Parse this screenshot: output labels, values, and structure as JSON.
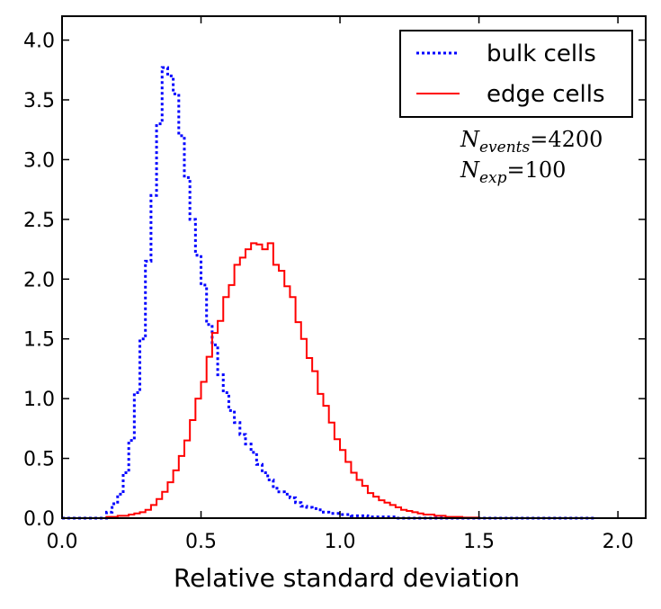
{
  "chart_data": {
    "type": "line",
    "drawstyle": "steps",
    "xlabel": "Relative standard deviation",
    "ylabel": "",
    "xlim": [
      0.0,
      2.1
    ],
    "ylim": [
      0.0,
      4.2
    ],
    "xticks": [
      "0.0",
      "0.5",
      "1.0",
      "1.5",
      "2.0"
    ],
    "yticks": [
      "0.0",
      "0.5",
      "1.0",
      "1.5",
      "2.0",
      "2.5",
      "3.0",
      "3.5",
      "4.0"
    ],
    "grid": false,
    "legend_position": "top-right",
    "annotations": [
      {
        "symbol": "N",
        "subscript": "events",
        "value": "=4200"
      },
      {
        "symbol": "N",
        "subscript": "exp",
        "value": "=100"
      }
    ],
    "series": [
      {
        "name": "bulk cells",
        "color": "#0000ff",
        "linestyle": "dotted",
        "bins": [
          [
            0.0,
            0.02,
            0.0
          ],
          [
            0.02,
            0.04,
            0.0
          ],
          [
            0.04,
            0.06,
            0.0
          ],
          [
            0.06,
            0.08,
            0.0
          ],
          [
            0.08,
            0.1,
            0.0
          ],
          [
            0.1,
            0.12,
            0.0
          ],
          [
            0.12,
            0.14,
            0.0
          ],
          [
            0.14,
            0.16,
            0.0
          ],
          [
            0.16,
            0.18,
            0.05
          ],
          [
            0.18,
            0.2,
            0.12
          ],
          [
            0.2,
            0.22,
            0.2
          ],
          [
            0.22,
            0.24,
            0.38
          ],
          [
            0.24,
            0.26,
            0.65
          ],
          [
            0.26,
            0.28,
            1.05
          ],
          [
            0.28,
            0.3,
            1.5
          ],
          [
            0.3,
            0.32,
            2.15
          ],
          [
            0.32,
            0.34,
            2.7
          ],
          [
            0.34,
            0.36,
            3.3
          ],
          [
            0.36,
            0.38,
            3.77
          ],
          [
            0.38,
            0.4,
            3.7
          ],
          [
            0.4,
            0.42,
            3.55
          ],
          [
            0.42,
            0.44,
            3.2
          ],
          [
            0.44,
            0.46,
            2.85
          ],
          [
            0.46,
            0.48,
            2.5
          ],
          [
            0.48,
            0.5,
            2.2
          ],
          [
            0.5,
            0.52,
            1.95
          ],
          [
            0.52,
            0.54,
            1.62
          ],
          [
            0.54,
            0.56,
            1.45
          ],
          [
            0.56,
            0.58,
            1.2
          ],
          [
            0.58,
            0.6,
            1.05
          ],
          [
            0.6,
            0.62,
            0.9
          ],
          [
            0.62,
            0.64,
            0.8
          ],
          [
            0.64,
            0.66,
            0.7
          ],
          [
            0.66,
            0.68,
            0.62
          ],
          [
            0.68,
            0.7,
            0.55
          ],
          [
            0.7,
            0.72,
            0.45
          ],
          [
            0.72,
            0.74,
            0.38
          ],
          [
            0.74,
            0.76,
            0.32
          ],
          [
            0.76,
            0.78,
            0.25
          ],
          [
            0.78,
            0.8,
            0.22
          ],
          [
            0.8,
            0.82,
            0.2
          ],
          [
            0.82,
            0.84,
            0.17
          ],
          [
            0.84,
            0.86,
            0.13
          ],
          [
            0.86,
            0.88,
            0.1
          ],
          [
            0.88,
            0.9,
            0.09
          ],
          [
            0.9,
            0.92,
            0.08
          ],
          [
            0.92,
            0.94,
            0.07
          ],
          [
            0.94,
            0.96,
            0.05
          ],
          [
            0.96,
            0.98,
            0.04
          ],
          [
            0.98,
            1.0,
            0.04
          ],
          [
            1.0,
            1.02,
            0.03
          ],
          [
            1.02,
            1.04,
            0.03
          ],
          [
            1.04,
            1.06,
            0.02
          ],
          [
            1.06,
            1.08,
            0.02
          ],
          [
            1.08,
            1.1,
            0.02
          ],
          [
            1.1,
            1.12,
            0.01
          ],
          [
            1.12,
            1.14,
            0.01
          ],
          [
            1.14,
            1.16,
            0.01
          ],
          [
            1.16,
            1.18,
            0.01
          ],
          [
            1.18,
            1.2,
            0.01
          ],
          [
            1.2,
            1.3,
            0.0
          ],
          [
            1.3,
            1.4,
            0.0
          ],
          [
            1.4,
            1.5,
            0.0
          ],
          [
            1.5,
            1.6,
            0.0
          ],
          [
            1.6,
            1.7,
            0.0
          ],
          [
            1.7,
            1.8,
            0.0
          ],
          [
            1.8,
            1.92,
            0.0
          ]
        ]
      },
      {
        "name": "edge cells",
        "color": "#ff0000",
        "linestyle": "solid",
        "bins": [
          [
            0.0,
            0.16,
            0.0
          ],
          [
            0.16,
            0.2,
            0.01
          ],
          [
            0.2,
            0.24,
            0.02
          ],
          [
            0.24,
            0.26,
            0.03
          ],
          [
            0.26,
            0.28,
            0.04
          ],
          [
            0.28,
            0.3,
            0.05
          ],
          [
            0.3,
            0.32,
            0.07
          ],
          [
            0.32,
            0.34,
            0.11
          ],
          [
            0.34,
            0.36,
            0.16
          ],
          [
            0.36,
            0.38,
            0.22
          ],
          [
            0.38,
            0.4,
            0.3
          ],
          [
            0.4,
            0.42,
            0.4
          ],
          [
            0.42,
            0.44,
            0.52
          ],
          [
            0.44,
            0.46,
            0.65
          ],
          [
            0.46,
            0.48,
            0.82
          ],
          [
            0.48,
            0.5,
            1.0
          ],
          [
            0.5,
            0.52,
            1.14
          ],
          [
            0.52,
            0.54,
            1.35
          ],
          [
            0.54,
            0.56,
            1.55
          ],
          [
            0.56,
            0.58,
            1.65
          ],
          [
            0.58,
            0.6,
            1.85
          ],
          [
            0.6,
            0.62,
            1.95
          ],
          [
            0.62,
            0.64,
            2.12
          ],
          [
            0.64,
            0.66,
            2.18
          ],
          [
            0.66,
            0.68,
            2.25
          ],
          [
            0.68,
            0.7,
            2.3
          ],
          [
            0.7,
            0.72,
            2.29
          ],
          [
            0.72,
            0.74,
            2.25
          ],
          [
            0.74,
            0.76,
            2.3
          ],
          [
            0.76,
            0.78,
            2.12
          ],
          [
            0.78,
            0.8,
            2.07
          ],
          [
            0.8,
            0.82,
            1.94
          ],
          [
            0.82,
            0.84,
            1.85
          ],
          [
            0.84,
            0.86,
            1.64
          ],
          [
            0.86,
            0.88,
            1.5
          ],
          [
            0.88,
            0.9,
            1.34
          ],
          [
            0.9,
            0.92,
            1.23
          ],
          [
            0.92,
            0.94,
            1.04
          ],
          [
            0.94,
            0.96,
            0.94
          ],
          [
            0.96,
            0.98,
            0.8
          ],
          [
            0.98,
            1.0,
            0.66
          ],
          [
            1.0,
            1.02,
            0.57
          ],
          [
            1.02,
            1.04,
            0.47
          ],
          [
            1.04,
            1.06,
            0.38
          ],
          [
            1.06,
            1.08,
            0.32
          ],
          [
            1.08,
            1.1,
            0.27
          ],
          [
            1.1,
            1.12,
            0.21
          ],
          [
            1.12,
            1.14,
            0.18
          ],
          [
            1.14,
            1.16,
            0.15
          ],
          [
            1.16,
            1.18,
            0.13
          ],
          [
            1.18,
            1.2,
            0.11
          ],
          [
            1.2,
            1.22,
            0.09
          ],
          [
            1.22,
            1.24,
            0.07
          ],
          [
            1.24,
            1.26,
            0.06
          ],
          [
            1.26,
            1.28,
            0.05
          ],
          [
            1.28,
            1.3,
            0.04
          ],
          [
            1.3,
            1.34,
            0.03
          ],
          [
            1.34,
            1.38,
            0.02
          ],
          [
            1.38,
            1.44,
            0.01
          ],
          [
            1.44,
            1.5,
            0.005
          ],
          [
            1.5,
            1.92,
            0.0
          ]
        ]
      }
    ]
  }
}
